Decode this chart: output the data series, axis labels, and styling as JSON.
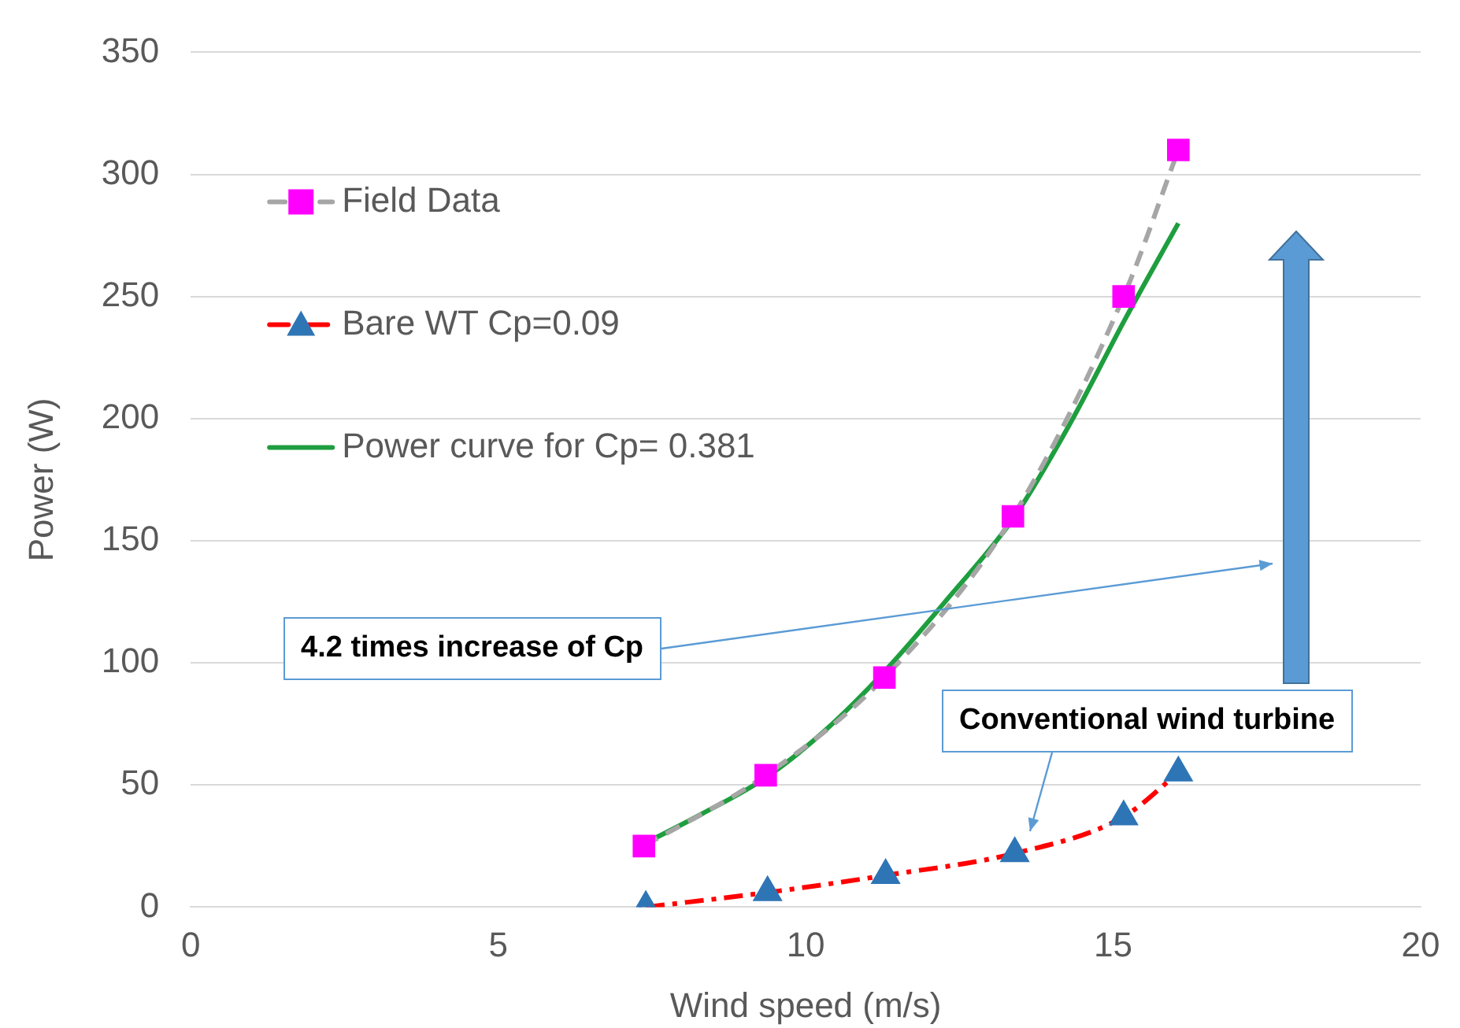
{
  "chart_data": {
    "type": "line",
    "xlabel": "Wind speed (m/s)",
    "ylabel": "Power (W)",
    "xlim": [
      0,
      20
    ],
    "xticks": [
      0,
      5,
      10,
      15,
      20
    ],
    "ylim": [
      0,
      350
    ],
    "yticks": [
      0,
      50,
      100,
      150,
      200,
      250,
      300,
      350
    ],
    "grid": "y",
    "legend": "top left",
    "series": [
      {
        "name": "Field Data",
        "line_style": "dashed",
        "marker": "square",
        "color": "#a6a6a6",
        "colors": [
          "#ff00ff",
          "#ff00ff",
          "#ff00ff",
          "#ff00ff",
          "#ff00ff",
          "#ff00ff"
        ],
        "x": [
          7.37,
          9.35,
          11.28,
          13.37,
          15.17,
          16.06
        ],
        "values": [
          25,
          54,
          94,
          160,
          250,
          310
        ]
      },
      {
        "name": "Bare WT Cp=0.09",
        "line_style": "dashdot",
        "marker": "triangle",
        "color": "#ff0000",
        "colors": [
          "#2e75b6",
          "#2e75b6",
          "#2e75b6",
          "#2e75b6",
          "#2e75b6",
          "#2e75b6"
        ],
        "x": [
          7.4,
          9.38,
          11.3,
          13.4,
          15.17,
          16.06
        ],
        "values": [
          0,
          6,
          13,
          22,
          37,
          55
        ]
      },
      {
        "name": "Power curve for Cp= 0.381",
        "line_style": "solid",
        "marker": "none",
        "color": "#1e9e3e",
        "x": [
          7.3,
          8.3,
          9.35,
          10.3,
          11.3,
          12.3,
          13.4,
          14.3,
          15.2,
          16.06
        ],
        "values": [
          25,
          38,
          53,
          72,
          97,
          126,
          160,
          198,
          241,
          280
        ]
      }
    ],
    "annotations": [
      "4.2 times increase of Cp",
      "Conventional wind turbine"
    ]
  }
}
